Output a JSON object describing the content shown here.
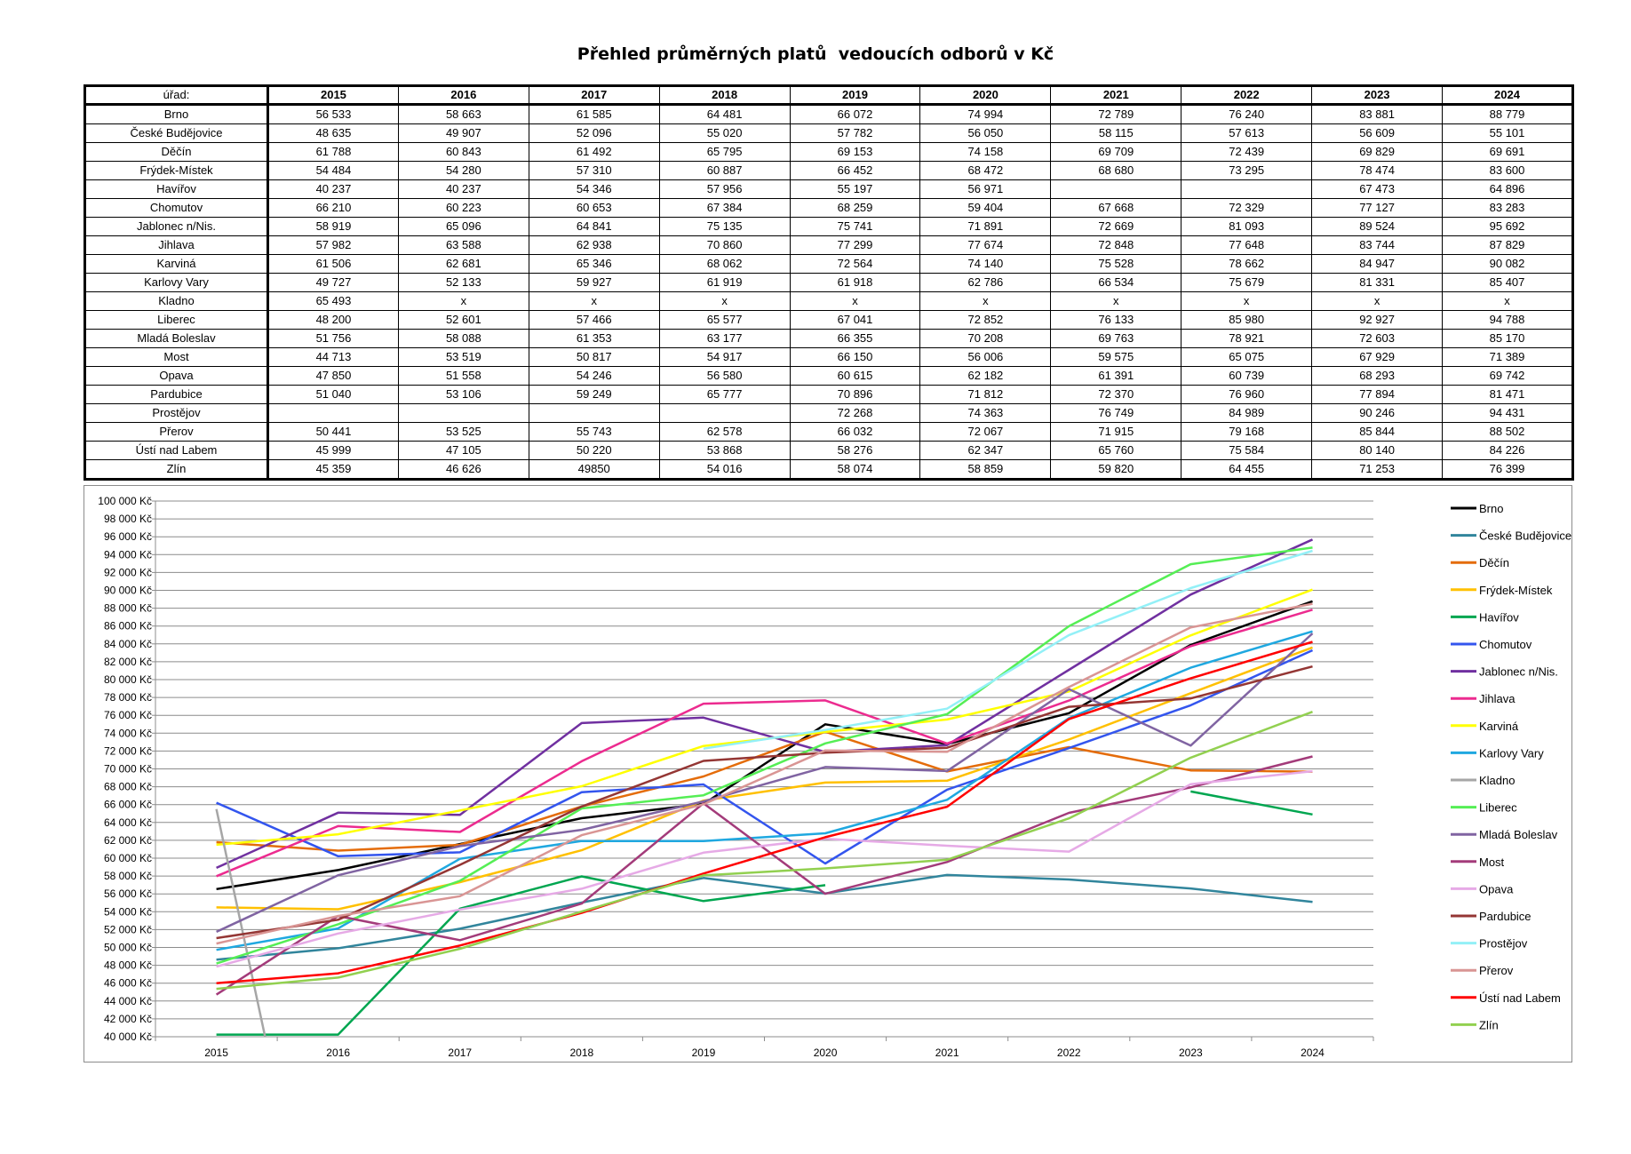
{
  "title": "Přehled průměrných platů  vedoucích odborů v Kč",
  "table": {
    "headers": [
      "úřad:",
      "2015",
      "2016",
      "2017",
      "2018",
      "2019",
      "2020",
      "2021",
      "2022",
      "2023",
      "2024"
    ],
    "rows": [
      [
        "Brno",
        "56 533",
        "58 663",
        "61 585",
        "64 481",
        "66 072",
        "74 994",
        "72 789",
        "76 240",
        "83 881",
        "88 779"
      ],
      [
        "České Budějovice",
        "48 635",
        "49 907",
        "52 096",
        "55 020",
        "57 782",
        "56 050",
        "58 115",
        "57 613",
        "56 609",
        "55 101"
      ],
      [
        "Děčín",
        "61 788",
        "60 843",
        "61 492",
        "65 795",
        "69 153",
        "74 158",
        "69 709",
        "72 439",
        "69 829",
        "69 691"
      ],
      [
        "Frýdek-Místek",
        "54 484",
        "54 280",
        "57 310",
        "60 887",
        "66 452",
        "68 472",
        "68 680",
        "73 295",
        "78 474",
        "83 600"
      ],
      [
        "Havířov",
        "40 237",
        "40 237",
        "54 346",
        "57 956",
        "55 197",
        "56 971",
        "",
        "",
        "67 473",
        "64 896"
      ],
      [
        "Chomutov",
        "66 210",
        "60 223",
        "60 653",
        "67 384",
        "68 259",
        "59 404",
        "67 668",
        "72 329",
        "77 127",
        "83 283"
      ],
      [
        "Jablonec n/Nis.",
        "58 919",
        "65 096",
        "64 841",
        "75 135",
        "75 741",
        "71 891",
        "72 669",
        "81 093",
        "89 524",
        "95 692"
      ],
      [
        "Jihlava",
        "57 982",
        "63 588",
        "62 938",
        "70 860",
        "77 299",
        "77 674",
        "72 848",
        "77 648",
        "83 744",
        "87 829"
      ],
      [
        "Karviná",
        "61 506",
        "62 681",
        "65 346",
        "68 062",
        "72 564",
        "74 140",
        "75 528",
        "78 662",
        "84 947",
        "90 082"
      ],
      [
        "Karlovy Vary",
        "49 727",
        "52 133",
        "59 927",
        "61 919",
        "61 918",
        "62 786",
        "66 534",
        "75 679",
        "81 331",
        "85 407"
      ],
      [
        "Kladno",
        "65 493",
        "x",
        "x",
        "x",
        "x",
        "x",
        "x",
        "x",
        "x",
        "x"
      ],
      [
        "Liberec",
        "48 200",
        "52 601",
        "57 466",
        "65 577",
        "67 041",
        "72 852",
        "76 133",
        "85 980",
        "92 927",
        "94 788"
      ],
      [
        "Mladá Boleslav",
        "51 756",
        "58 088",
        "61 353",
        "63 177",
        "66 355",
        "70 208",
        "69 763",
        "78 921",
        "72 603",
        "85 170"
      ],
      [
        "Most",
        "44 713",
        "53 519",
        "50 817",
        "54 917",
        "66 150",
        "56 006",
        "59 575",
        "65 075",
        "67 929",
        "71 389"
      ],
      [
        "Opava",
        "47 850",
        "51 558",
        "54 246",
        "56 580",
        "60 615",
        "62 182",
        "61 391",
        "60 739",
        "68 293",
        "69 742"
      ],
      [
        "Pardubice",
        "51 040",
        "53 106",
        "59 249",
        "65 777",
        "70 896",
        "71 812",
        "72 370",
        "76 960",
        "77 894",
        "81 471"
      ],
      [
        "Prostějov",
        "",
        "",
        "",
        "",
        "72 268",
        "74 363",
        "76 749",
        "84 989",
        "90 246",
        "94 431"
      ],
      [
        "Přerov",
        "50 441",
        "53 525",
        "55 743",
        "62 578",
        "66 032",
        "72 067",
        "71 915",
        "79 168",
        "85 844",
        "88 502"
      ],
      [
        "Ústí nad Labem",
        "45 999",
        "47 105",
        "50 220",
        "53 868",
        "58 276",
        "62 347",
        "65 760",
        "75 584",
        "80 140",
        "84 226"
      ],
      [
        "Zlín",
        "45 359",
        "46 626",
        "49850",
        "54 016",
        "58 074",
        "58 859",
        "59 820",
        "64 455",
        "71 253",
        "76 399"
      ]
    ]
  },
  "chart_data": {
    "type": "line",
    "x": [
      "2015",
      "2016",
      "2017",
      "2018",
      "2019",
      "2020",
      "2021",
      "2022",
      "2023",
      "2024"
    ],
    "ylim": [
      40000,
      100000
    ],
    "ytick_step": 2000,
    "ytick_suffix": " Kč",
    "grid": true,
    "legend": "right",
    "series": [
      {
        "name": "Brno",
        "color": "#000000",
        "values": [
          56533,
          58663,
          61585,
          64481,
          66072,
          74994,
          72789,
          76240,
          83881,
          88779
        ]
      },
      {
        "name": "České Budějovice",
        "color": "#31859c",
        "values": [
          48635,
          49907,
          52096,
          55020,
          57782,
          56050,
          58115,
          57613,
          56609,
          55101
        ]
      },
      {
        "name": "Děčín",
        "color": "#e46c0a",
        "values": [
          61788,
          60843,
          61492,
          65795,
          69153,
          74158,
          69709,
          72439,
          69829,
          69691
        ]
      },
      {
        "name": "Frýdek-Místek",
        "color": "#ffc000",
        "values": [
          54484,
          54280,
          57310,
          60887,
          66452,
          68472,
          68680,
          73295,
          78474,
          83600
        ]
      },
      {
        "name": "Havířov",
        "color": "#00a650",
        "values": [
          40237,
          40237,
          54346,
          57956,
          55197,
          56971,
          null,
          null,
          67473,
          64896
        ]
      },
      {
        "name": "Chomutov",
        "color": "#3355ee",
        "values": [
          66210,
          60223,
          60653,
          67384,
          68259,
          59404,
          67668,
          72329,
          77127,
          83283
        ]
      },
      {
        "name": "Jablonec n/Nis.",
        "color": "#7030a0",
        "values": [
          58919,
          65096,
          64841,
          75135,
          75741,
          71891,
          72669,
          81093,
          89524,
          95692
        ]
      },
      {
        "name": "Jihlava",
        "color": "#ec2b8f",
        "values": [
          57982,
          63588,
          62938,
          70860,
          77299,
          77674,
          72848,
          77648,
          83744,
          87829
        ]
      },
      {
        "name": "Karviná",
        "color": "#ffff00",
        "values": [
          61506,
          62681,
          65346,
          68062,
          72564,
          74140,
          75528,
          78662,
          84947,
          90082
        ]
      },
      {
        "name": "Karlovy Vary",
        "color": "#1fa8e0",
        "values": [
          49727,
          52133,
          59927,
          61919,
          61918,
          62786,
          66534,
          75679,
          81331,
          85407
        ]
      },
      {
        "name": "Kladno",
        "color": "#a6a6a6",
        "values": [
          65493,
          null,
          null,
          null,
          null,
          null,
          null,
          null,
          null,
          null
        ]
      },
      {
        "name": "Liberec",
        "color": "#55ee55",
        "values": [
          48200,
          52601,
          57466,
          65577,
          67041,
          72852,
          76133,
          85980,
          92927,
          94788
        ]
      },
      {
        "name": "Mladá Boleslav",
        "color": "#8064a2",
        "values": [
          51756,
          58088,
          61353,
          63177,
          66355,
          70208,
          69763,
          78921,
          72603,
          85170
        ]
      },
      {
        "name": "Most",
        "color": "#a33b7a",
        "values": [
          44713,
          53519,
          50817,
          54917,
          66150,
          56006,
          59575,
          65075,
          67929,
          71389
        ]
      },
      {
        "name": "Opava",
        "color": "#e6aae6",
        "values": [
          47850,
          51558,
          54246,
          56580,
          60615,
          62182,
          61391,
          60739,
          68293,
          69742
        ]
      },
      {
        "name": "Pardubice",
        "color": "#943634",
        "values": [
          51040,
          53106,
          59249,
          65777,
          70896,
          71812,
          72370,
          76960,
          77894,
          81471
        ]
      },
      {
        "name": "Prostějov",
        "color": "#93f0f7",
        "values": [
          null,
          null,
          null,
          null,
          72268,
          74363,
          76749,
          84989,
          90246,
          94431
        ]
      },
      {
        "name": "Přerov",
        "color": "#d99594",
        "values": [
          50441,
          53525,
          55743,
          62578,
          66032,
          72067,
          71915,
          79168,
          85844,
          88502
        ]
      },
      {
        "name": "Ústí nad Labem",
        "color": "#ff0000",
        "values": [
          45999,
          47105,
          50220,
          53868,
          58276,
          62347,
          65760,
          75584,
          80140,
          84226
        ]
      },
      {
        "name": "Zlín",
        "color": "#92d050",
        "values": [
          45359,
          46626,
          49850,
          54016,
          58074,
          58859,
          59820,
          64455,
          71253,
          76399
        ]
      }
    ]
  }
}
